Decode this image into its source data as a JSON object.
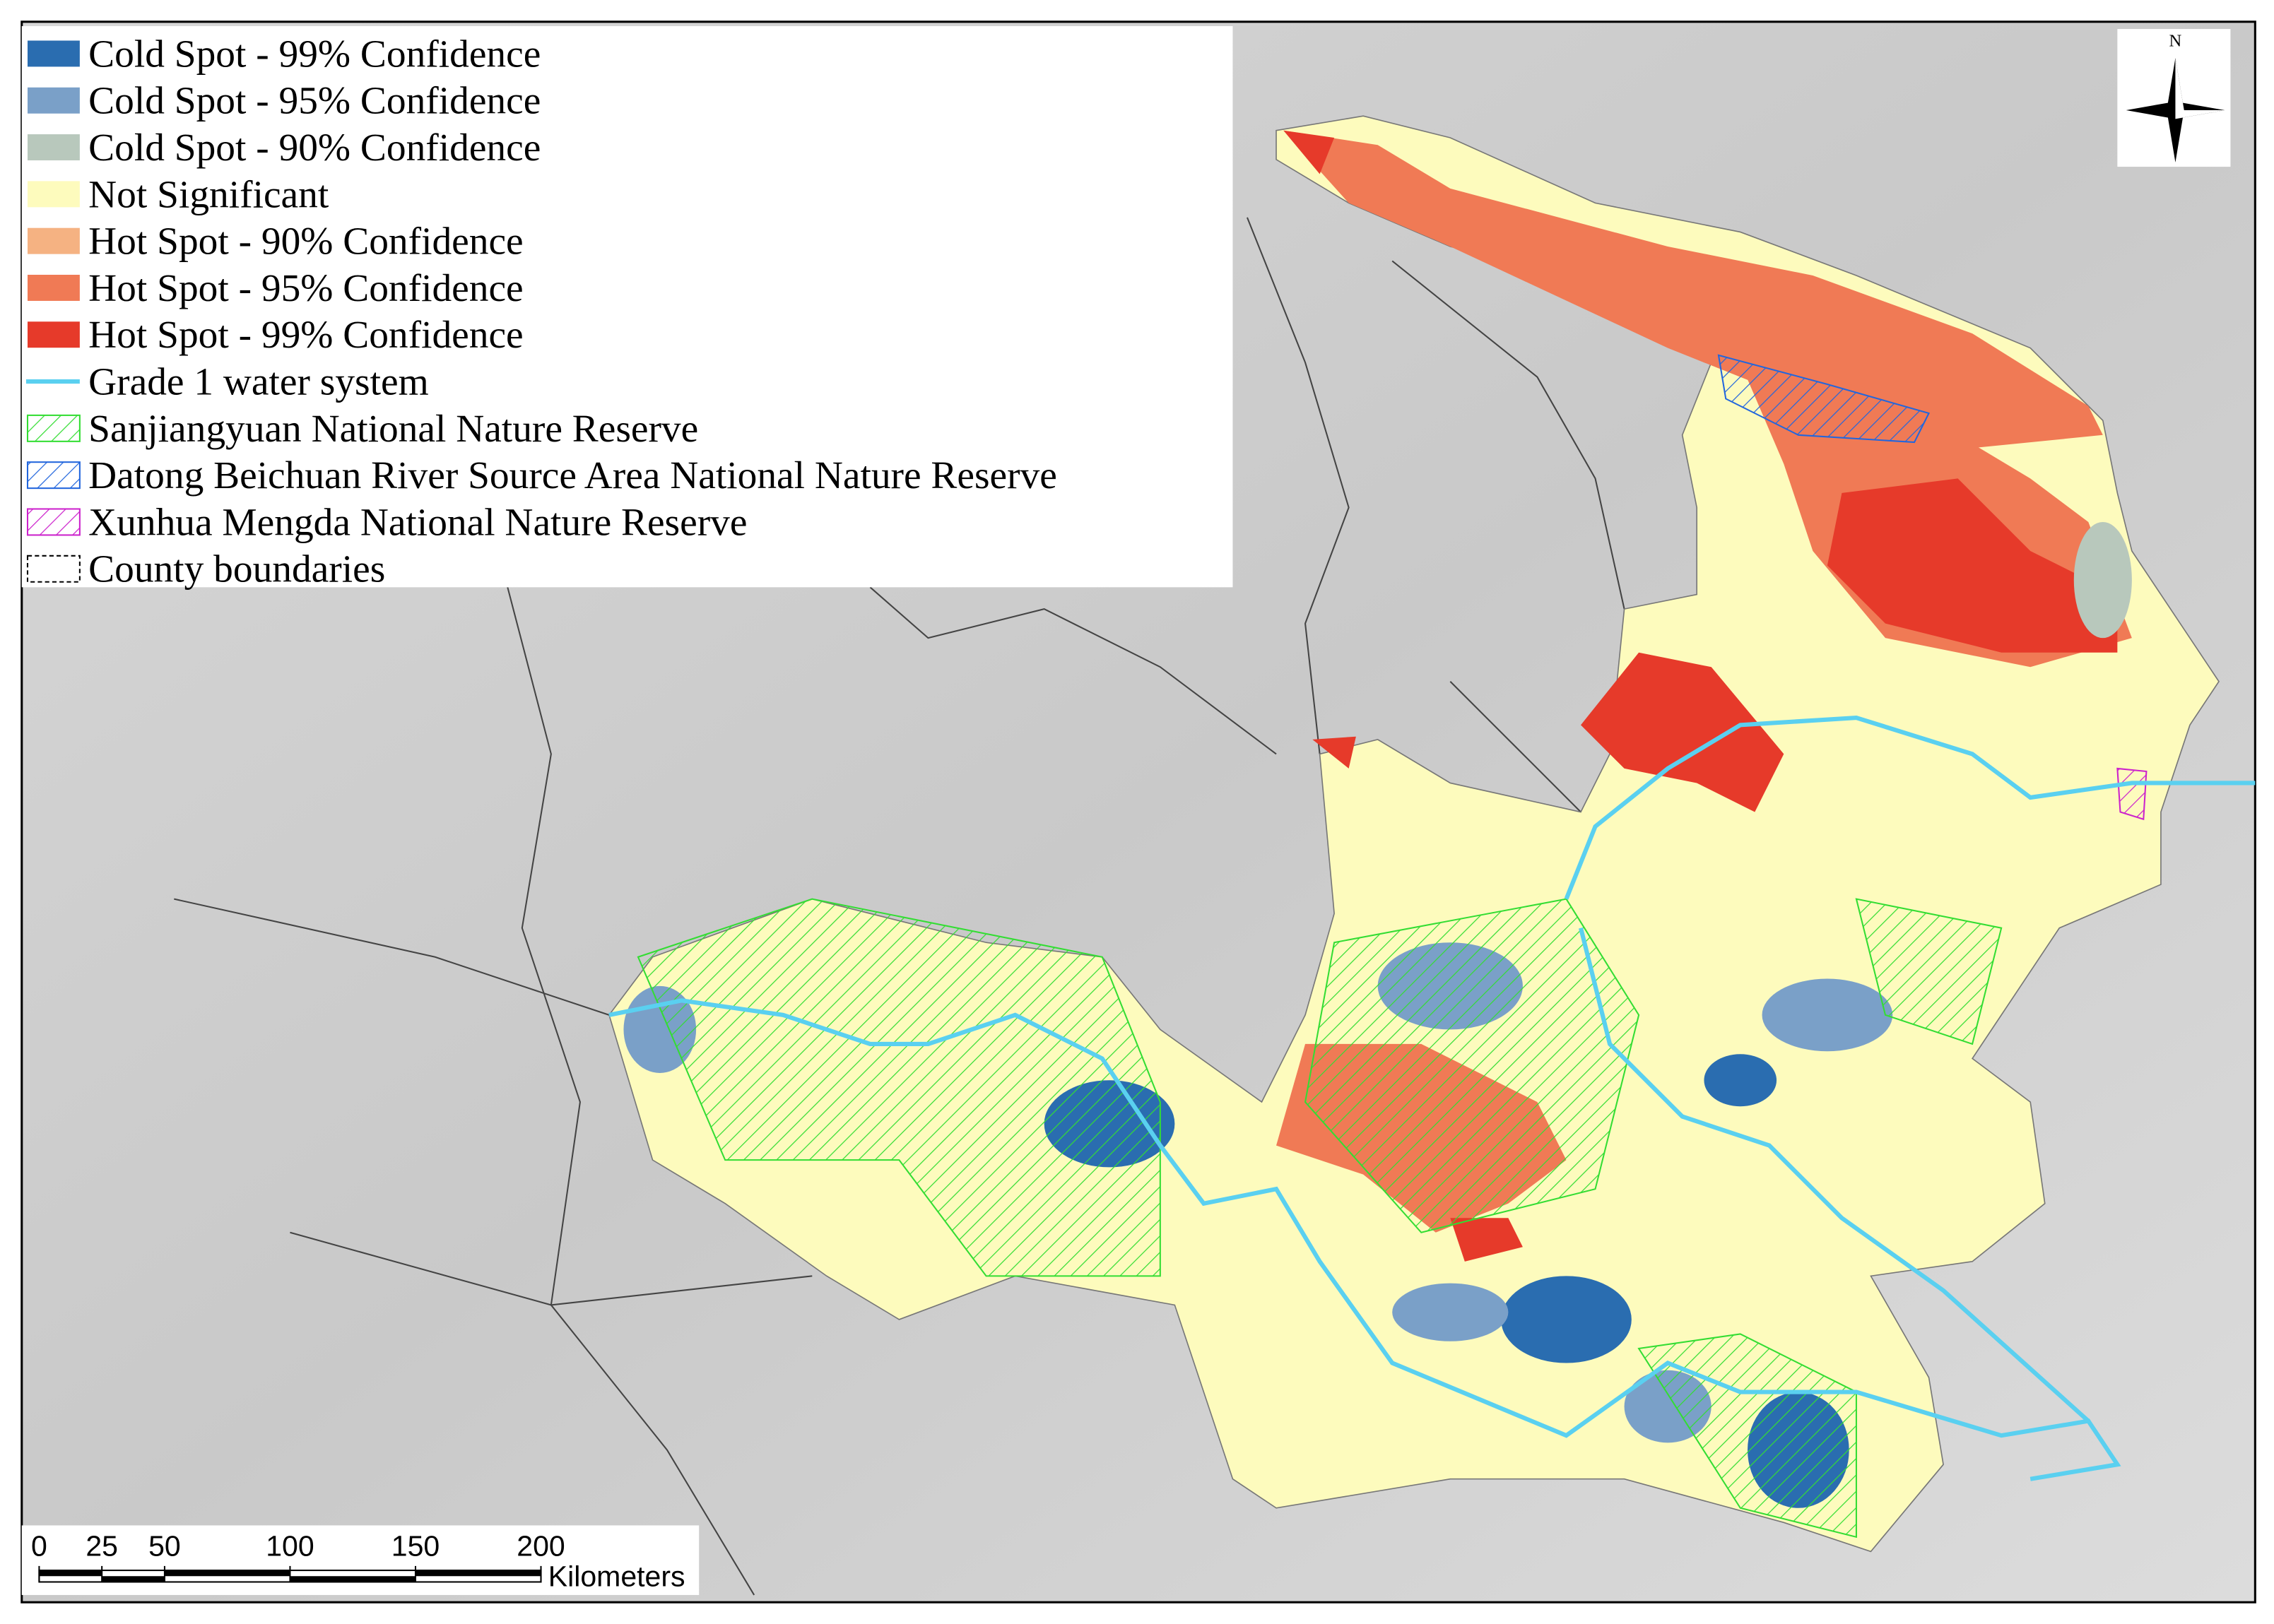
{
  "legend": {
    "items": [
      "Cold Spot - 99% Confidence",
      "Cold Spot - 95% Confidence",
      "Cold Spot - 90% Confidence",
      "Not Significant",
      "Hot Spot - 90% Confidence",
      "Hot Spot - 95% Confidence",
      "Hot Spot - 99% Confidence",
      "Grade 1 water system",
      "Sanjiangyuan National Nature Reserve",
      "Datong Beichuan River Source Area National Nature Reserve",
      "Xunhua Mengda National Nature Reserve",
      "County boundaries"
    ]
  },
  "north_arrow": {
    "label": "N"
  },
  "scale_bar": {
    "ticks": [
      0,
      25,
      50,
      100,
      150,
      200
    ],
    "unit": "Kilometers"
  }
}
